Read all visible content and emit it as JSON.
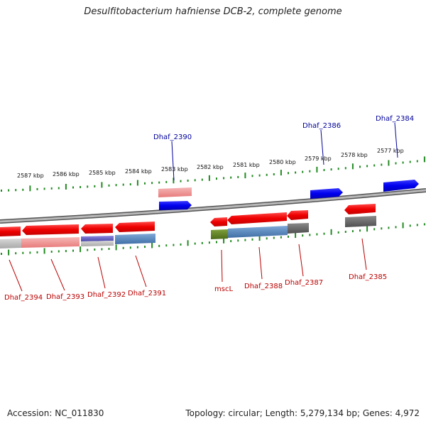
{
  "title": "Desulfitobacterium hafniense DCB-2, complete genome",
  "footer": {
    "accession": "Accession: NC_011830",
    "topology": "Topology: circular; Length: 5,279,134 bp; Genes: 4,972"
  },
  "scale_labels": [
    "2587 kbp",
    "2586 kbp",
    "2585 kbp",
    "2584 kbp",
    "2583 kbp",
    "2582 kbp",
    "2581 kbp",
    "2580 kbp",
    "2579 kbp",
    "2578 kbp",
    "2577 kbp"
  ],
  "forward_gene_labels": [
    "Dhaf_2390",
    "Dhaf_2386",
    "Dhaf_2384"
  ],
  "reverse_gene_labels": [
    "Dhaf_2394",
    "Dhaf_2393",
    "Dhaf_2392",
    "Dhaf_2391",
    "mscL",
    "Dhaf_2388",
    "Dhaf_2387",
    "Dhaf_2385"
  ],
  "colors": {
    "forward_gene": "#0000ee",
    "reverse_gene": "#ee0000",
    "forward_label": "#00009a",
    "reverse_label": "#bb0000",
    "tick": "#228b22",
    "backbone": "#8a8a8a"
  }
}
